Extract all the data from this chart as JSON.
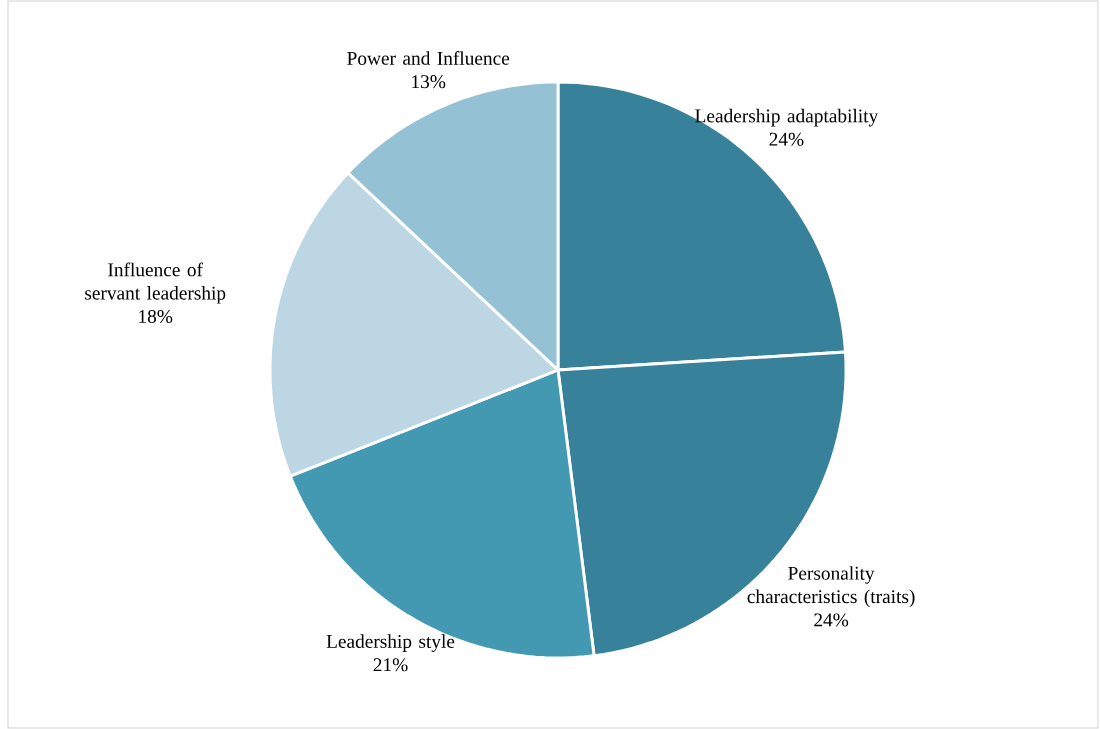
{
  "chart_data": {
    "type": "pie",
    "categories": [
      "Leadership adaptability",
      "Personality characteristics (traits)",
      "Leadership style",
      "Influence of servant leadership",
      "Power and Influence"
    ],
    "values": [
      24,
      24,
      21,
      18,
      13
    ],
    "colors": [
      "#37829a",
      "#37829a",
      "#4399b1",
      "#bcd7e3",
      "#94c2d4"
    ],
    "value_labels": [
      "24%",
      "24%",
      "21%",
      "18%",
      "13%"
    ]
  }
}
